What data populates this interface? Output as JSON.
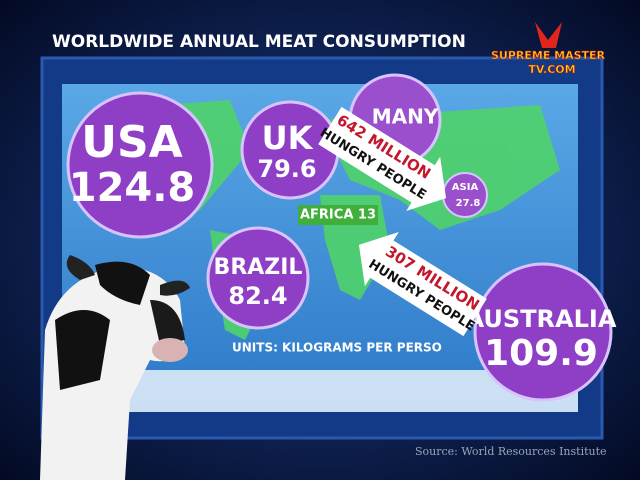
{
  "header": {
    "title": "WORLDWIDE ANNUAL MEAT CONSUMPTION",
    "logo_line1": "SUPREME MASTER",
    "logo_line2": "TV.COM"
  },
  "bubbles": [
    {
      "label": "USA",
      "value": 124.8
    },
    {
      "label": "UK",
      "value": 79.6
    },
    {
      "label": "MANY"
    },
    {
      "label": "ASIA",
      "value": 27.8
    },
    {
      "label": "BRAZIL",
      "value": 82.4
    },
    {
      "label": "AUSTRALIA",
      "value": 109.9
    }
  ],
  "africa": "AFRICA 13",
  "arrows": [
    {
      "line1": "642 MILLION",
      "line2": "HUNGRY PEOPLE"
    },
    {
      "line1": "307 MILLION",
      "line2": "HUNGRY PEOPLE"
    }
  ],
  "units": "UNITS: KILOGRAMS PER PERSO",
  "source": "Source: World Resources Institute"
}
